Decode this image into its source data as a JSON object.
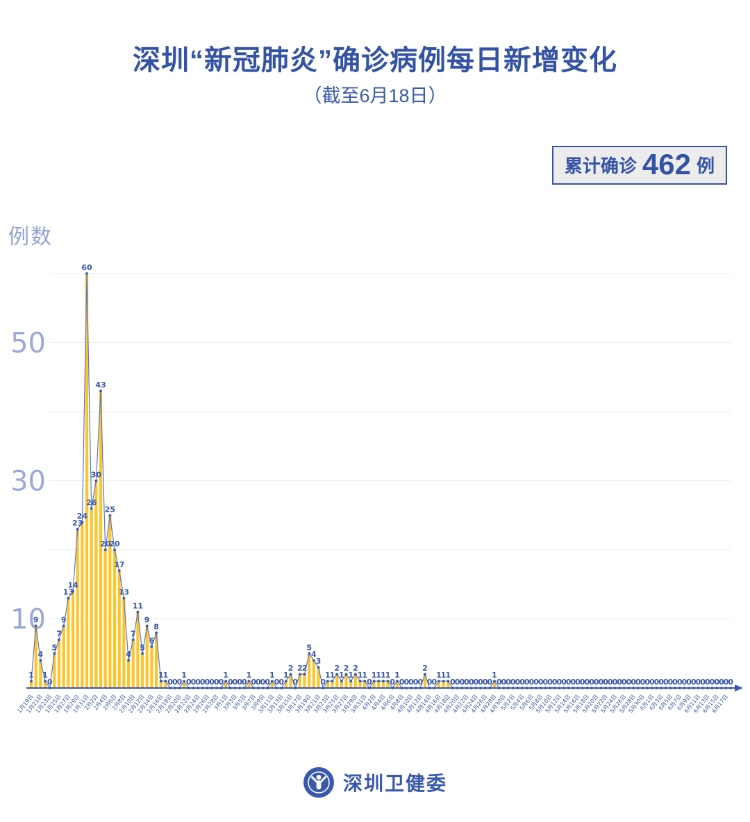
{
  "header": {
    "title": "深圳“新冠肺炎”确诊病例每日新增变化",
    "subtitle": "（截至6月18日）"
  },
  "badge": {
    "prefix": "累计确诊",
    "value": "462",
    "suffix": "例"
  },
  "footer": {
    "org": "深圳卫健委"
  },
  "chart_data": {
    "type": "line",
    "render_style": "yellow daily bars under a thin blue line with point markers and a value label on every point; x axis is a blue arrow line with rotated date labels every 2 days",
    "title": "深圳“新冠肺炎”确诊病例每日新增变化",
    "subtitle": "（截至6月18日）",
    "ylabel": "例数",
    "xlabel": "",
    "cumulative_total": 462,
    "ylim": [
      0,
      62
    ],
    "grid": true,
    "gridline_step": 10,
    "ytick_labels_shown": [
      10,
      30,
      50
    ],
    "x_label_interval": 2,
    "x": [
      "1月19日",
      "1月20日",
      "1月21日",
      "1月22日",
      "1月23日",
      "1月24日",
      "1月25日",
      "1月26日",
      "1月27日",
      "1月28日",
      "1月29日",
      "1月30日",
      "1月31日",
      "2月1日",
      "2月2日",
      "2月3日",
      "2月4日",
      "2月5日",
      "2月6日",
      "2月7日",
      "2月8日",
      "2月9日",
      "2月10日",
      "2月11日",
      "2月12日",
      "2月13日",
      "2月14日",
      "2月15日",
      "2月16日",
      "2月17日",
      "2月18日",
      "2月19日",
      "2月20日",
      "2月21日",
      "2月22日",
      "2月23日",
      "2月24日",
      "2月25日",
      "2月26日",
      "2月27日",
      "2月28日",
      "2月29日",
      "3月1日",
      "3月2日",
      "3月3日",
      "3月4日",
      "3月5日",
      "3月6日",
      "3月7日",
      "3月8日",
      "3月9日",
      "3月10日",
      "3月11日",
      "3月12日",
      "3月13日",
      "3月14日",
      "3月15日",
      "3月16日",
      "3月17日",
      "3月18日",
      "3月19日",
      "3月20日",
      "3月21日",
      "3月22日",
      "3月23日",
      "3月24日",
      "3月25日",
      "3月26日",
      "3月27日",
      "3月28日",
      "3月29日",
      "3月30日",
      "3月31日",
      "4月1日",
      "4月2日",
      "4月3日",
      "4月4日",
      "4月5日",
      "4月6日",
      "4月7日",
      "4月8日",
      "4月9日",
      "4月10日",
      "4月11日",
      "4月12日",
      "4月13日",
      "4月14日",
      "4月15日",
      "4月16日",
      "4月17日",
      "4月18日",
      "4月19日",
      "4月20日",
      "4月21日",
      "4月22日",
      "4月23日",
      "4月24日",
      "4月25日",
      "4月26日",
      "4月27日",
      "4月28日",
      "4月29日",
      "4月30日",
      "5月1日",
      "5月2日",
      "5月3日",
      "5月4日",
      "5月5日",
      "5月6日",
      "5月7日",
      "5月8日",
      "5月9日",
      "5月10日",
      "5月11日",
      "5月12日",
      "5月13日",
      "5月14日",
      "5月15日",
      "5月16日",
      "5月17日",
      "5月18日",
      "5月19日",
      "5月20日",
      "5月21日",
      "5月22日",
      "5月23日",
      "5月24日",
      "5月25日",
      "5月26日",
      "5月27日",
      "5月28日",
      "5月29日",
      "5月30日",
      "5月31日",
      "6月1日",
      "6月2日",
      "6月3日",
      "6月4日",
      "6月5日",
      "6月6日",
      "6月7日",
      "6月8日",
      "6月9日",
      "6月10日",
      "6月11日",
      "6月12日",
      "6月13日",
      "6月14日",
      "6月15日",
      "6月16日",
      "6月17日",
      "6月18日"
    ],
    "values": [
      1,
      9,
      4,
      1,
      0,
      5,
      7,
      9,
      13,
      14,
      23,
      24,
      60,
      26,
      30,
      43,
      20,
      25,
      20,
      17,
      13,
      4,
      7,
      11,
      5,
      9,
      6,
      8,
      1,
      1,
      0,
      0,
      0,
      1,
      0,
      0,
      0,
      0,
      0,
      0,
      0,
      0,
      1,
      0,
      0,
      0,
      0,
      1,
      0,
      0,
      0,
      0,
      1,
      0,
      0,
      1,
      2,
      0,
      2,
      2,
      5,
      4,
      3,
      0,
      1,
      1,
      2,
      1,
      2,
      1,
      2,
      1,
      1,
      0,
      1,
      1,
      1,
      1,
      0,
      1,
      0,
      0,
      0,
      0,
      0,
      2,
      0,
      0,
      1,
      1,
      1,
      0,
      0,
      0,
      0,
      0,
      0,
      0,
      0,
      0,
      1,
      0,
      0,
      0,
      0,
      0,
      0,
      0,
      0,
      0,
      0,
      0,
      0,
      0,
      0,
      0,
      0,
      0,
      0,
      0,
      0,
      0,
      0,
      0,
      0,
      0,
      0,
      0,
      0,
      0,
      0,
      0,
      0,
      0,
      0,
      0,
      0,
      0,
      0,
      0,
      0,
      0,
      0,
      0,
      0,
      0,
      0,
      0,
      0,
      0,
      0,
      0
    ],
    "colors": {
      "bar": "#FDC42C",
      "line": "#5B76BC",
      "marker": "#3A57AD",
      "point_label": "#3A57AD",
      "axis": "#3A57AD",
      "grid": "#E9E9E9",
      "ytick_label": "#9AA9D8",
      "title": "#3553A5",
      "badge_bg": "#ECECEC"
    }
  }
}
